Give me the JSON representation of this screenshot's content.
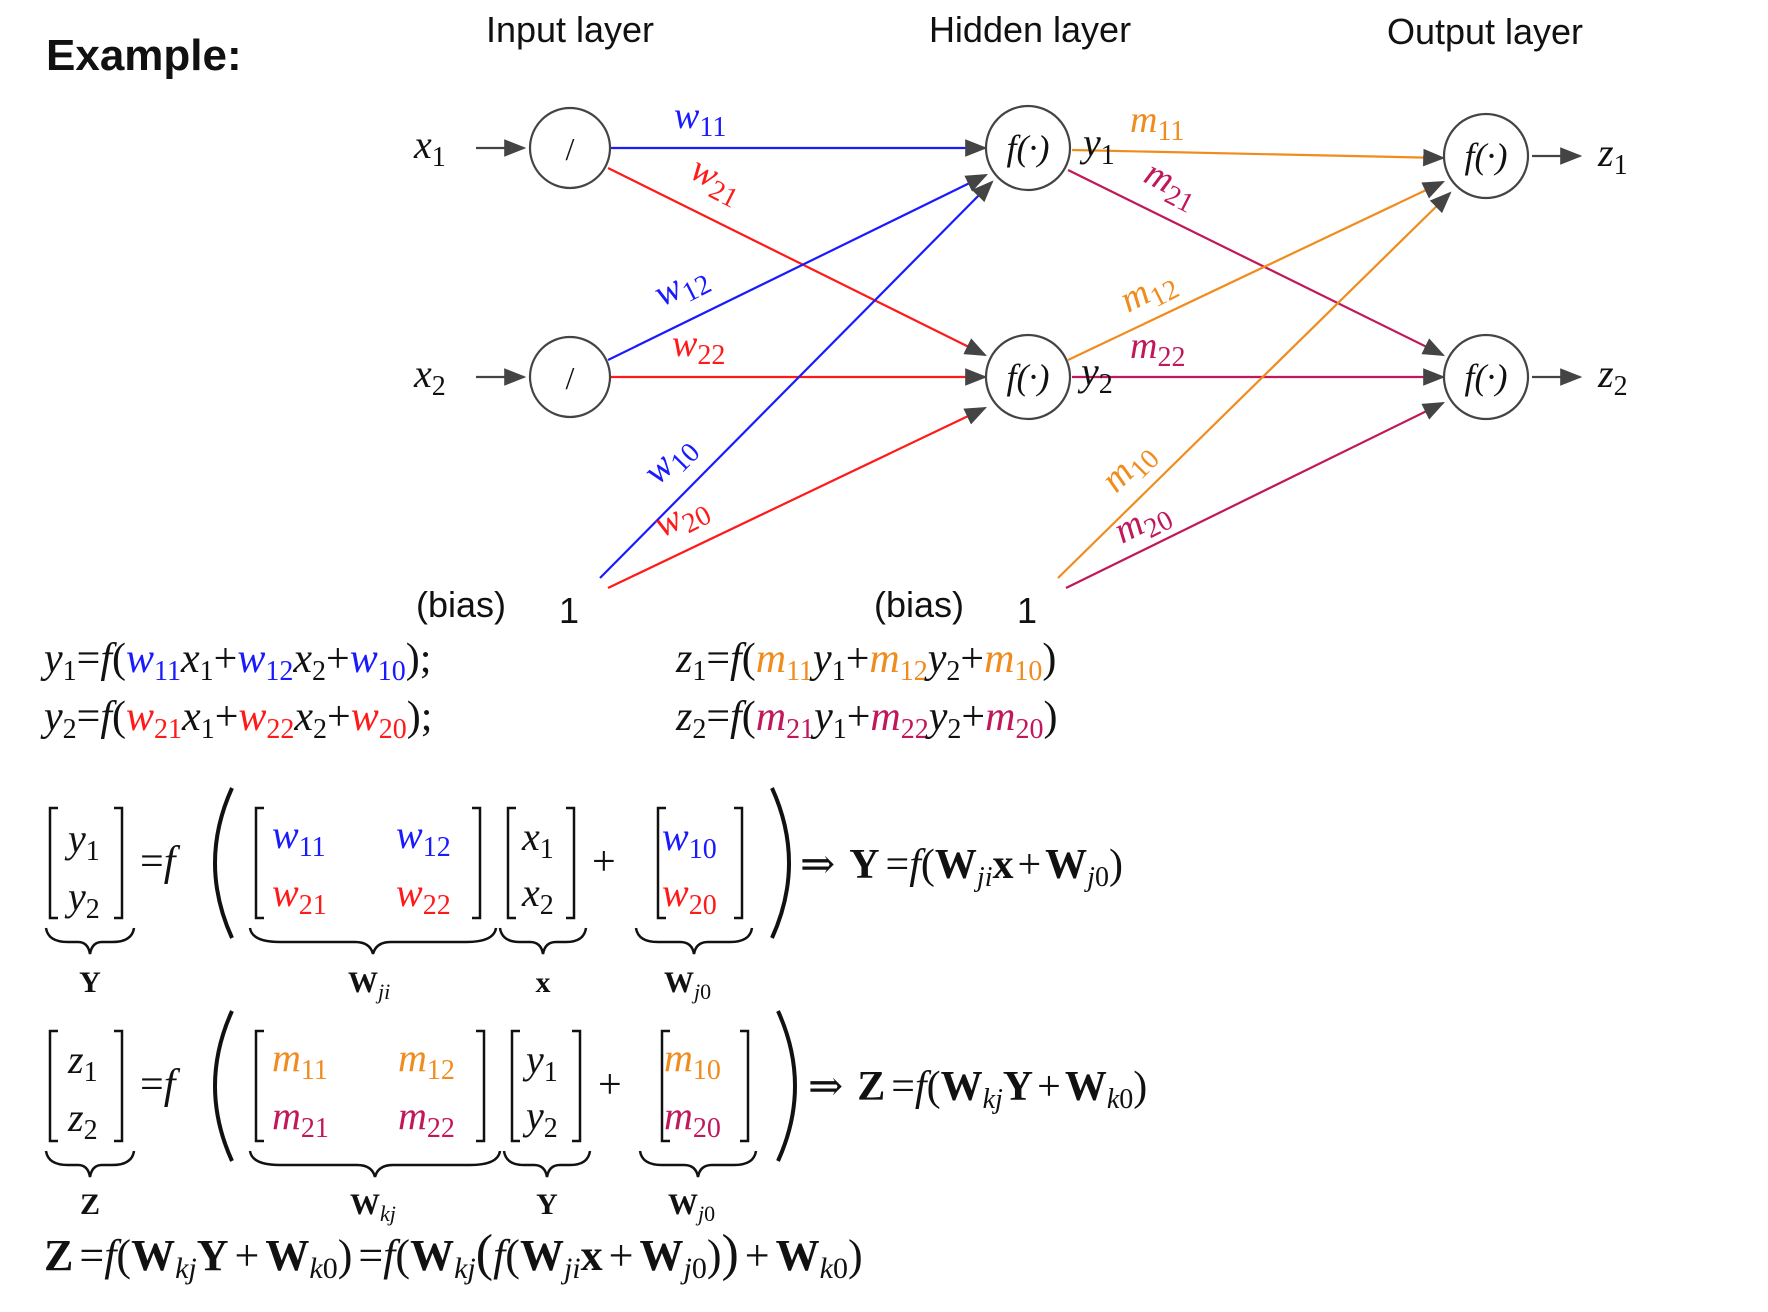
{
  "heading": "Example:",
  "layers": {
    "input": "Input layer",
    "hidden": "Hidden layer",
    "output": "Output layer"
  },
  "bias": {
    "label": "(bias)",
    "value": "1"
  },
  "nodes": {
    "input_glyph": "/",
    "activation_glyph": "f(·)",
    "x1": "x",
    "x2": "x",
    "y1": "y",
    "y2": "y",
    "z1": "z",
    "z2": "z"
  },
  "subscripts": {
    "s1": "1",
    "s2": "2"
  },
  "weights": {
    "w11": {
      "base": "w",
      "sub": "11"
    },
    "w21": {
      "base": "w",
      "sub": "21"
    },
    "w12": {
      "base": "w",
      "sub": "12"
    },
    "w22": {
      "base": "w",
      "sub": "22"
    },
    "w10": {
      "base": "w",
      "sub": "10"
    },
    "w20": {
      "base": "w",
      "sub": "20"
    },
    "m11": {
      "base": "m",
      "sub": "11"
    },
    "m21": {
      "base": "m",
      "sub": "21"
    },
    "m12": {
      "base": "m",
      "sub": "12"
    },
    "m22": {
      "base": "m",
      "sub": "22"
    },
    "m10": {
      "base": "m",
      "sub": "10"
    },
    "m20": {
      "base": "m",
      "sub": "20"
    }
  },
  "colors": {
    "w1": "#1a1aff",
    "w2": "#ff1a1a",
    "m1": "#f08c1e",
    "m2": "#c0185a",
    "ink": "#111111",
    "node": "#444444"
  },
  "sym": {
    "eq": "=",
    "f": "f",
    "lp": "(",
    "rp": ")",
    "plus": "+",
    "semi": ";",
    "implies": "⇒",
    "j": "j",
    "i": "i",
    "k": "k",
    "zero": "0"
  },
  "matrix_labels": {
    "Y": "Y",
    "Z": "Z",
    "W": "W",
    "x": "x"
  }
}
